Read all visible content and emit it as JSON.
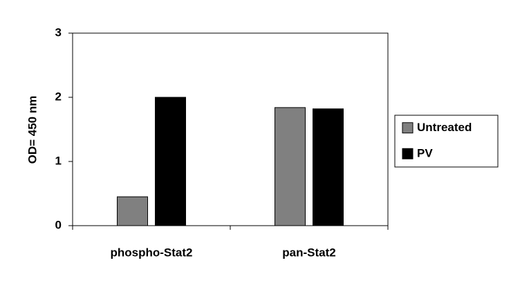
{
  "chart_data": {
    "type": "bar",
    "y_label": "OD= 450 nm",
    "categories": [
      "phospho-Stat2",
      "pan-Stat2"
    ],
    "series": [
      {
        "name": "Untreated",
        "color": "#808080",
        "values": [
          0.45,
          1.84
        ]
      },
      {
        "name": "PV",
        "color": "#000000",
        "values": [
          2.0,
          1.82
        ]
      }
    ],
    "ylim": [
      0,
      3
    ],
    "yticks": [
      0,
      1,
      2,
      3
    ],
    "grid": false,
    "legend": "right"
  }
}
